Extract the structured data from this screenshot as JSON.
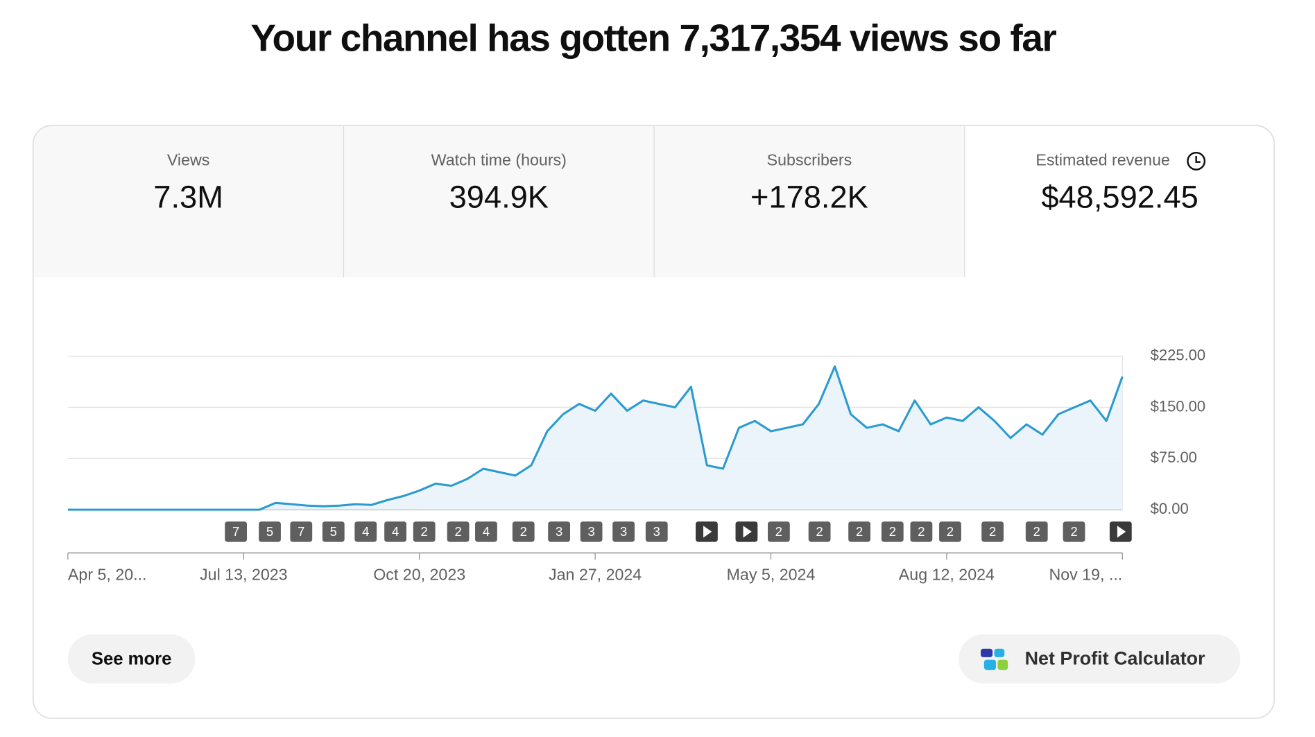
{
  "header": {
    "title": "Your channel has gotten 7,317,354 views so far"
  },
  "metrics": [
    {
      "label": "Views",
      "value": "7.3M"
    },
    {
      "label": "Watch time (hours)",
      "value": "394.9K"
    },
    {
      "label": "Subscribers",
      "value": "+178.2K"
    },
    {
      "label": "Estimated revenue",
      "value": "$48,592.45"
    }
  ],
  "chart_data": {
    "type": "line",
    "categories": [
      "Apr 5, 20...",
      null,
      null,
      null,
      null,
      null,
      null,
      null,
      null,
      null,
      null,
      "Jul 13, 2023",
      null,
      null,
      null,
      null,
      null,
      null,
      null,
      null,
      null,
      null,
      "Oct 20, 2023",
      null,
      null,
      null,
      null,
      null,
      null,
      null,
      null,
      null,
      null,
      "Jan 27, 2024",
      null,
      null,
      null,
      null,
      null,
      null,
      null,
      null,
      null,
      null,
      "May 5, 2024",
      null,
      null,
      null,
      null,
      null,
      null,
      null,
      null,
      null,
      null,
      "Aug 12, 2024",
      null,
      null,
      null,
      null,
      null,
      null,
      null,
      null,
      null,
      null,
      "Nov 19, ..."
    ],
    "values": [
      0,
      0,
      0,
      0,
      0,
      0,
      0,
      0,
      0,
      0,
      0,
      0,
      0,
      10,
      8,
      6,
      5,
      6,
      8,
      7,
      14,
      20,
      28,
      38,
      35,
      45,
      60,
      55,
      50,
      65,
      115,
      140,
      155,
      145,
      170,
      145,
      160,
      155,
      150,
      180,
      65,
      60,
      120,
      130,
      115,
      120,
      125,
      155,
      210,
      140,
      120,
      125,
      115,
      160,
      125,
      135,
      130,
      150,
      130,
      105,
      125,
      110,
      140,
      150,
      160,
      130,
      195
    ],
    "color": "#2a9ad0",
    "ylim": [
      0,
      225
    ],
    "yticks": [
      {
        "value": 0,
        "label": "$0.00"
      },
      {
        "value": 75,
        "label": "$75.00"
      },
      {
        "value": 150,
        "label": "$150.00"
      },
      {
        "value": 225,
        "label": "$225.00"
      }
    ],
    "grid": true,
    "markers": [
      "7",
      "5",
      "7",
      "5",
      "4",
      "4",
      "2",
      "2",
      "4",
      "2",
      "3",
      "3",
      "3",
      "3",
      null,
      null,
      "2",
      "2",
      "2",
      "2",
      "2",
      "2",
      "2",
      "2",
      "2",
      null
    ]
  },
  "buttons": {
    "see_more": "See more",
    "calculator": "Net Profit Calculator"
  }
}
